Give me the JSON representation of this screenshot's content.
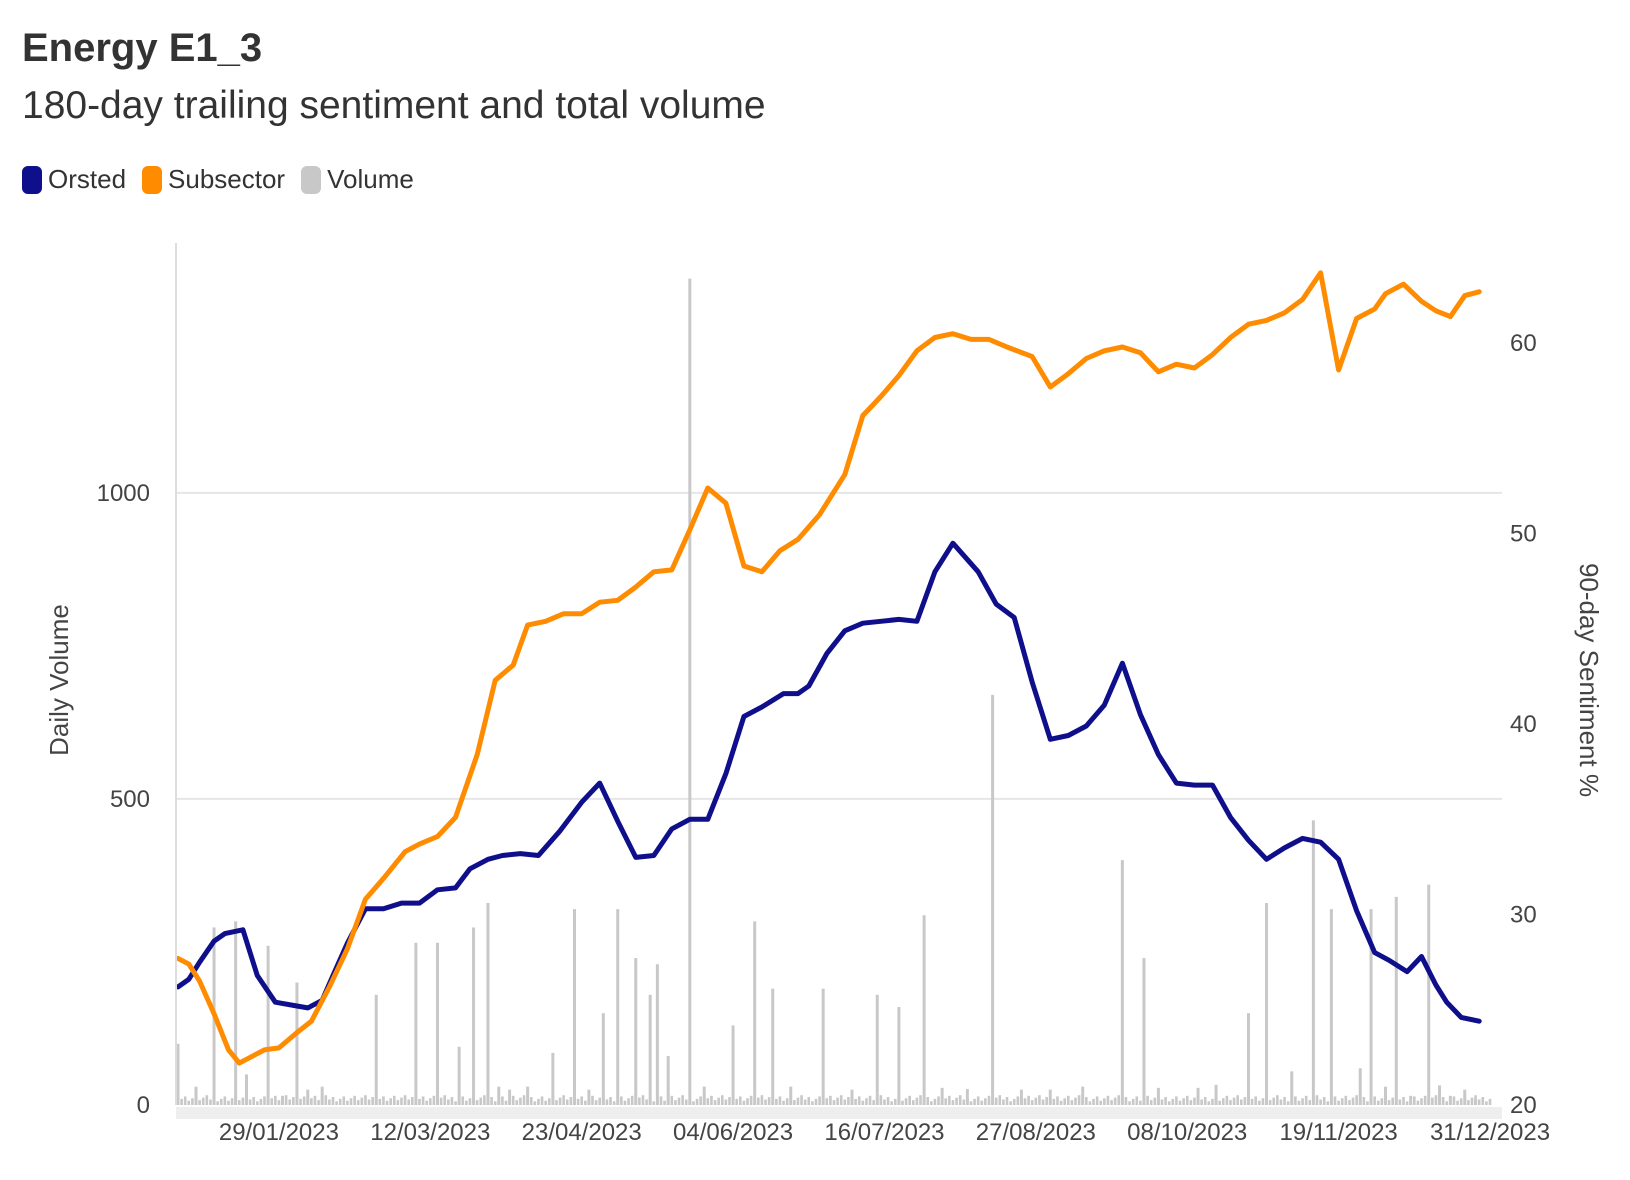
{
  "header": {
    "title": "Energy E1_3",
    "subtitle": "180-day trailing sentiment and total volume"
  },
  "legend": [
    {
      "name": "Orsted",
      "color": "#0f0f8c"
    },
    {
      "name": "Subsector",
      "color": "#ff8c00"
    },
    {
      "name": "Volume",
      "color": "#c8c8c8"
    }
  ],
  "chart_data": {
    "type": "line",
    "x_ticks": [
      "29/01/2023",
      "12/03/2023",
      "23/04/2023",
      "04/06/2023",
      "16/07/2023",
      "27/08/2023",
      "08/10/2023",
      "19/11/2023",
      "31/12/2023"
    ],
    "x_start": "2023-01-01",
    "x_end": "2023-12-31",
    "y_left": {
      "label": "Daily Volume",
      "ticks": [
        0,
        500,
        1000
      ],
      "range": [
        0,
        1400
      ]
    },
    "y_right": {
      "label": "90-day Sentiment %",
      "ticks": [
        20,
        30,
        40,
        50,
        60
      ],
      "range": [
        20,
        65
      ]
    },
    "grid": true,
    "series": [
      {
        "name": "Orsted",
        "color": "#0f0f8c",
        "axis": "right",
        "day": [
          0,
          3,
          6,
          10,
          13,
          18,
          22,
          27,
          33,
          36,
          40,
          43,
          47,
          52,
          57,
          62,
          67,
          72,
          77,
          81,
          86,
          90,
          95,
          100,
          106,
          112,
          117,
          122,
          127,
          132,
          137,
          142,
          147,
          152,
          157,
          162,
          168,
          172,
          175,
          180,
          185,
          190,
          195,
          200,
          205,
          210,
          215,
          222,
          227,
          232,
          237,
          242,
          247,
          252,
          257,
          262,
          267,
          272,
          277,
          282,
          287,
          292,
          297,
          302,
          307,
          312,
          317,
          322,
          327,
          332,
          336,
          341,
          345,
          349,
          352,
          356,
          361
        ],
        "values": [
          26.2,
          26.6,
          27.5,
          28.6,
          29.0,
          29.2,
          26.8,
          25.4,
          25.2,
          25.1,
          25.5,
          26.8,
          28.5,
          30.3,
          30.3,
          30.6,
          30.6,
          31.3,
          31.4,
          32.4,
          32.9,
          33.1,
          33.2,
          33.1,
          34.4,
          35.9,
          36.9,
          34.9,
          33.0,
          33.1,
          34.5,
          35.0,
          35.0,
          37.4,
          40.4,
          40.9,
          41.6,
          41.6,
          42.0,
          43.7,
          44.9,
          45.3,
          45.4,
          45.5,
          45.4,
          48.0,
          49.5,
          48.0,
          46.3,
          45.6,
          42.2,
          39.2,
          39.4,
          39.9,
          41.0,
          43.2,
          40.5,
          38.4,
          36.9,
          36.8,
          36.8,
          35.1,
          33.9,
          32.9,
          33.5,
          34.0,
          33.8,
          32.9,
          30.2,
          28.0,
          27.6,
          27.0,
          27.8,
          26.3,
          25.4,
          24.6,
          24.4
        ]
      },
      {
        "name": "Subsector",
        "color": "#ff8c00",
        "axis": "right",
        "day": [
          0,
          3,
          6,
          10,
          14,
          17,
          20,
          24,
          28,
          33,
          37,
          42,
          47,
          52,
          57,
          63,
          67,
          72,
          77,
          83,
          88,
          93,
          97,
          102,
          107,
          112,
          117,
          122,
          127,
          132,
          137,
          142,
          147,
          152,
          157,
          162,
          167,
          172,
          178,
          185,
          190,
          195,
          200,
          205,
          210,
          215,
          220,
          225,
          230,
          237,
          242,
          247,
          252,
          257,
          262,
          267,
          272,
          277,
          282,
          287,
          292,
          297,
          302,
          307,
          312,
          317,
          322,
          327,
          332,
          335,
          340,
          345,
          349,
          353,
          357,
          361
        ],
        "values": [
          27.7,
          27.4,
          26.5,
          24.8,
          22.9,
          22.2,
          22.5,
          22.9,
          23.0,
          23.8,
          24.4,
          26.2,
          28.2,
          30.8,
          31.9,
          33.3,
          33.7,
          34.1,
          35.1,
          38.4,
          42.3,
          43.1,
          45.2,
          45.4,
          45.8,
          45.8,
          46.4,
          46.5,
          47.2,
          48.0,
          48.1,
          50.2,
          52.4,
          51.6,
          48.3,
          48.0,
          49.1,
          49.7,
          51.0,
          53.1,
          56.2,
          57.2,
          58.3,
          59.6,
          60.3,
          60.5,
          60.2,
          60.2,
          59.8,
          59.3,
          57.7,
          58.4,
          59.2,
          59.6,
          59.8,
          59.5,
          58.5,
          58.9,
          58.7,
          59.4,
          60.3,
          61.0,
          61.2,
          61.6,
          62.3,
          63.7,
          58.6,
          61.3,
          61.8,
          62.6,
          63.1,
          62.2,
          61.7,
          61.4,
          62.5,
          62.7
        ]
      },
      {
        "name": "Volume",
        "color": "#c8c8c8",
        "axis": "left",
        "type": "bar",
        "day": [
          0,
          5,
          10,
          16,
          19,
          25,
          29,
          33,
          36,
          40,
          55,
          66,
          72,
          78,
          82,
          86,
          89,
          92,
          97,
          104,
          110,
          114,
          118,
          122,
          127,
          131,
          133,
          136,
          142,
          146,
          154,
          160,
          165,
          170,
          179,
          187,
          194,
          200,
          207,
          212,
          219,
          226,
          234,
          242,
          251,
          262,
          268,
          272,
          283,
          288,
          297,
          302,
          309,
          315,
          320,
          328,
          331,
          335,
          338,
          342,
          347,
          350,
          353,
          357,
          360
        ],
        "values": [
          100,
          30,
          290,
          300,
          50,
          260,
          15,
          200,
          25,
          30,
          180,
          265,
          265,
          95,
          290,
          330,
          30,
          25,
          30,
          85,
          320,
          25,
          150,
          320,
          240,
          180,
          230,
          80,
          1350,
          30,
          130,
          300,
          190,
          30,
          190,
          25,
          180,
          160,
          310,
          28,
          26,
          670,
          25,
          25,
          30,
          400,
          240,
          28,
          28,
          33,
          150,
          330,
          55,
          465,
          320,
          60,
          320,
          30,
          340,
          15,
          360,
          32,
          15,
          25,
          10
        ]
      }
    ]
  }
}
